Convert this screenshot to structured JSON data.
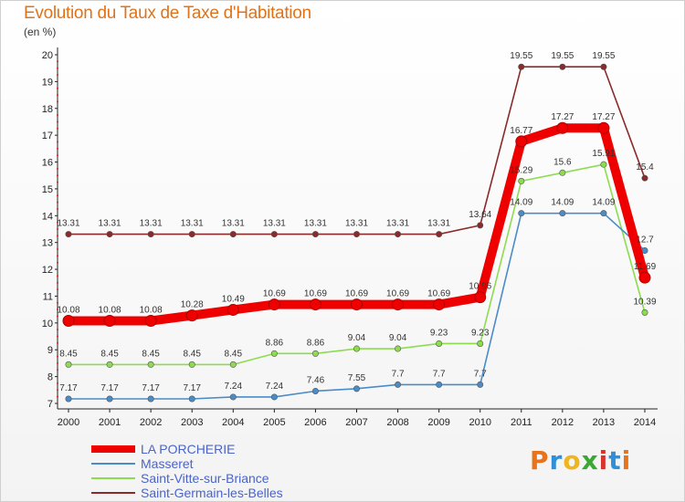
{
  "title": "Evolution du Taux de Taxe d'Habitation",
  "subtitle": "(en %)",
  "logo": "Proxiti",
  "chart_data": {
    "type": "line",
    "x": [
      "2000",
      "2001",
      "2002",
      "2003",
      "2004",
      "2005",
      "2006",
      "2007",
      "2008",
      "2009",
      "2010",
      "2011",
      "2012",
      "2013",
      "2014"
    ],
    "ylim": [
      7,
      20
    ],
    "yticks": [
      7,
      8,
      9,
      10,
      11,
      12,
      13,
      14,
      15,
      16,
      17,
      18,
      19,
      20
    ],
    "grid": false,
    "legend_position": "bottom-left",
    "series": [
      {
        "name": "LA PORCHERIE",
        "color": "#ee0000",
        "width": "thick",
        "values": [
          10.08,
          10.08,
          10.08,
          10.28,
          10.49,
          10.69,
          10.69,
          10.69,
          10.69,
          10.69,
          10.96,
          16.77,
          17.27,
          17.27,
          11.69
        ],
        "labels": [
          "10.08",
          "10.08",
          "10.08",
          "10.28",
          "10.49",
          "10.69",
          "10.69",
          "10.69",
          "10.69",
          "10.69",
          "10.96",
          "16.77",
          "17.27",
          "17.27",
          "11.69"
        ]
      },
      {
        "name": "Masseret",
        "color": "#4a8cc8",
        "width": "thin",
        "values": [
          7.17,
          7.17,
          7.17,
          7.17,
          7.24,
          7.24,
          7.46,
          7.55,
          7.7,
          7.7,
          7.7,
          14.09,
          14.09,
          14.09,
          12.7
        ],
        "labels": [
          "7.17",
          "7.17",
          "7.17",
          "7.17",
          "7.24",
          "7.24",
          "7.46",
          "7.55",
          "7.7",
          "7.7",
          "7.7",
          "14.09",
          "14.09",
          "14.09",
          "12.7"
        ]
      },
      {
        "name": "Saint-Vitte-sur-Briance",
        "color": "#8ddc50",
        "width": "thin",
        "values": [
          8.45,
          8.45,
          8.45,
          8.45,
          8.45,
          8.86,
          8.86,
          9.04,
          9.04,
          9.23,
          9.23,
          15.29,
          15.6,
          15.91,
          10.39
        ],
        "labels": [
          "8.45",
          "8.45",
          "8.45",
          "8.45",
          "8.45",
          "8.86",
          "8.86",
          "9.04",
          "9.04",
          "9.23",
          "9.23",
          "15.29",
          "15.6",
          "15.91",
          "10.39"
        ]
      },
      {
        "name": "Saint-Germain-les-Belles",
        "color": "#8a2a2a",
        "width": "thin",
        "values": [
          13.31,
          13.31,
          13.31,
          13.31,
          13.31,
          13.31,
          13.31,
          13.31,
          13.31,
          13.31,
          13.64,
          19.55,
          19.55,
          19.55,
          15.4
        ],
        "labels": [
          "13.31",
          "13.31",
          "13.31",
          "13.31",
          "13.31",
          "13.31",
          "13.31",
          "13.31",
          "13.31",
          "13.31",
          "13.64",
          "19.55",
          "19.55",
          "19.55",
          "15.4"
        ]
      }
    ]
  }
}
